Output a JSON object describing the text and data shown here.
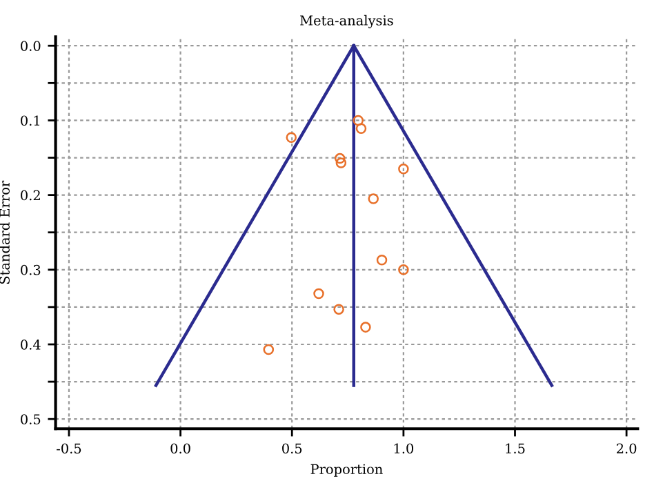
{
  "chart_data": {
    "type": "scatter",
    "title": "Meta-analysis",
    "xlabel": "Proportion",
    "ylabel": "Standard Error",
    "series": [
      {
        "color": "#e8702a",
        "marker": "circle",
        "x": [
          0.497,
          0.797,
          0.81,
          0.715,
          0.72,
          1.0,
          0.865,
          0.903,
          1.0,
          0.62,
          0.71,
          0.83,
          0.395
        ],
        "values": [
          0.123,
          0.1,
          0.111,
          0.151,
          0.157,
          0.165,
          0.205,
          0.287,
          0.3,
          0.332,
          0.353,
          0.377,
          0.407
        ]
      },
      {
        "type": "line",
        "color": "#2b2b8f",
        "marker": "none",
        "line_style": "solid",
        "x": [
          -0.11,
          0.777
        ],
        "values": [
          0.455,
          0.0
        ]
      },
      {
        "type": "line",
        "color": "#2b2b8f",
        "marker": "none",
        "line_style": "solid",
        "x": [
          0.777,
          1.665
        ],
        "values": [
          0.0,
          0.455
        ]
      },
      {
        "type": "line",
        "color": "#2b2b8f",
        "marker": "none",
        "line_style": "solid",
        "x": [
          0.777,
          0.777
        ],
        "values": [
          0.0,
          0.455
        ]
      }
    ],
    "xlim": [
      -0.56,
      2.05
    ],
    "ylim": [
      0.513,
      -0.012
    ],
    "xticks": [
      {
        "value": -0.5,
        "label": "-0.5"
      },
      {
        "value": 0,
        "label": "0.0"
      },
      {
        "value": 0.5,
        "label": "0.5"
      },
      {
        "value": 1,
        "label": "1.0"
      },
      {
        "value": 1.5,
        "label": "1.5"
      },
      {
        "value": 2,
        "label": "2.0"
      }
    ],
    "yticks": [
      {
        "value": 0,
        "label": "0.0"
      },
      {
        "value": 0.05,
        "label": null
      },
      {
        "value": 0.1,
        "label": "0.1"
      },
      {
        "value": 0.15,
        "label": null
      },
      {
        "value": 0.2,
        "label": "0.2"
      },
      {
        "value": 0.25,
        "label": null
      },
      {
        "value": 0.3,
        "label": "0.3"
      },
      {
        "value": 0.35,
        "label": null
      },
      {
        "value": 0.4,
        "label": "0.4"
      },
      {
        "value": 0.45,
        "label": null
      },
      {
        "value": 0.5,
        "label": "0.5"
      }
    ],
    "grid": true,
    "legend": false
  }
}
